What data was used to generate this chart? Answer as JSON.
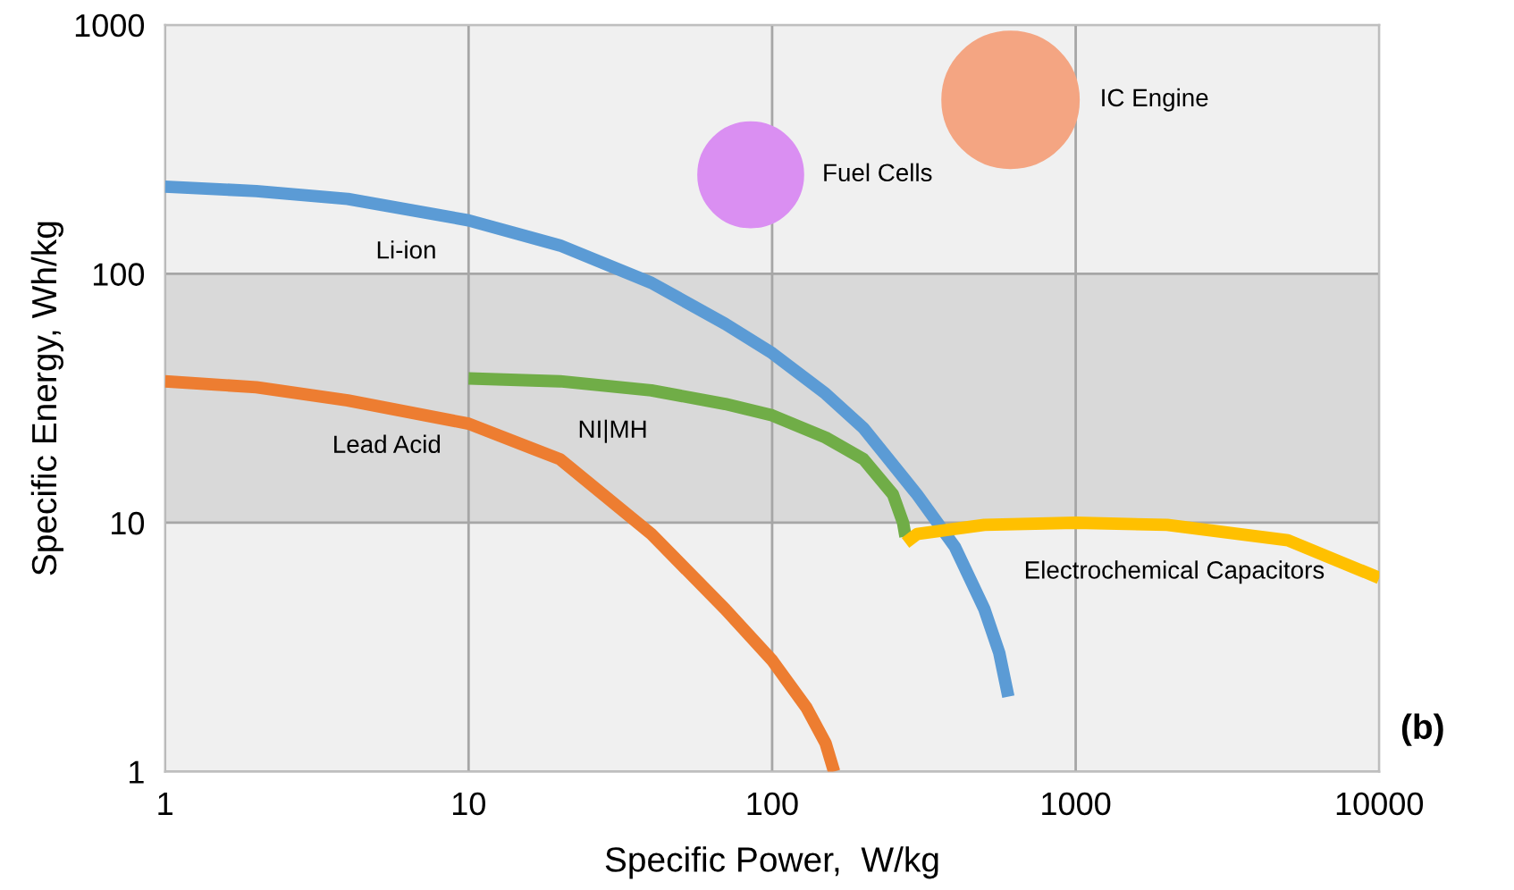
{
  "chart_data": {
    "type": "line",
    "xlabel": "Specific Power,  W/kg",
    "ylabel": "Specific Energy, Wh/kg",
    "log": "xy",
    "grid": true,
    "xlim": [
      1,
      10000
    ],
    "ylim": [
      1,
      1000
    ],
    "xticks": [
      1,
      10,
      100,
      1000,
      10000
    ],
    "yticks": [
      1,
      10,
      100,
      1000
    ],
    "bands": [
      {
        "axis": "y",
        "from": 10,
        "to": 100,
        "color": "#d9d9d9"
      }
    ],
    "series": [
      {
        "name": "Li-ion",
        "color": "#5b9bd5",
        "x": [
          1,
          2,
          4,
          10,
          20,
          40,
          70,
          100,
          150,
          200,
          300,
          400,
          500,
          560,
          600
        ],
        "values": [
          224,
          215,
          200,
          164,
          130,
          92,
          63,
          48,
          33,
          24,
          13,
          8,
          4.5,
          3,
          2
        ]
      },
      {
        "name": "Lead Acid",
        "color": "#ed7d31",
        "x": [
          1,
          2,
          4,
          10,
          20,
          40,
          70,
          100,
          130,
          150,
          160
        ],
        "values": [
          37,
          35,
          31,
          25,
          18,
          9,
          4.5,
          2.8,
          1.8,
          1.3,
          1
        ]
      },
      {
        "name": "NI|MH",
        "color": "#70ad47",
        "x": [
          10,
          20,
          40,
          70,
          100,
          150,
          200,
          250,
          270,
          275
        ],
        "values": [
          38,
          37,
          34,
          30,
          27,
          22,
          18,
          13,
          10,
          8.8
        ]
      },
      {
        "name": "Electrochemical Capacitors",
        "color": "#ffc000",
        "x": [
          275,
          300,
          500,
          1000,
          2000,
          5000,
          10000
        ],
        "values": [
          8.3,
          9.0,
          9.8,
          10,
          9.8,
          8.5,
          6.0
        ]
      },
      {
        "name": "Fuel Cells",
        "type": "bubble",
        "color": "#da8ff2",
        "x": [
          85
        ],
        "values": [
          250
        ],
        "sizes": [
          0.59
        ]
      },
      {
        "name": "IC Engine",
        "type": "bubble",
        "color": "#f4a582",
        "x": [
          610
        ],
        "values": [
          500
        ],
        "sizes": [
          1
        ]
      }
    ],
    "annotations": [
      "(b)"
    ]
  }
}
